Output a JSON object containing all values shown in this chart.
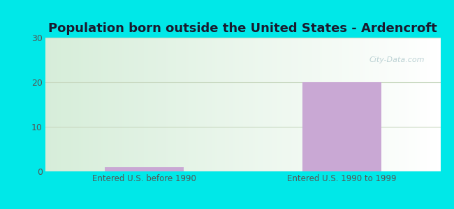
{
  "title": "Population born outside the United States - Ardencroft",
  "categories": [
    "Entered U.S. before 1990",
    "Entered U.S. 1990 to 1999"
  ],
  "values": [
    1,
    20
  ],
  "bar_color": "#c9a8d4",
  "ylim": [
    0,
    30
  ],
  "yticks": [
    0,
    10,
    20,
    30
  ],
  "background_outer": "#00e8e8",
  "bg_color_left": "#d6edd9",
  "bg_color_right": "#ffffff",
  "grid_color": "#c8d8c0",
  "title_fontsize": 13,
  "tick_fontsize": 9,
  "xlabel_fontsize": 8.5,
  "bar_width": 0.4,
  "watermark_text": "City-Data.com",
  "title_color": "#1a1a2e",
  "tick_color": "#555555",
  "xlim": [
    -0.5,
    1.5
  ]
}
